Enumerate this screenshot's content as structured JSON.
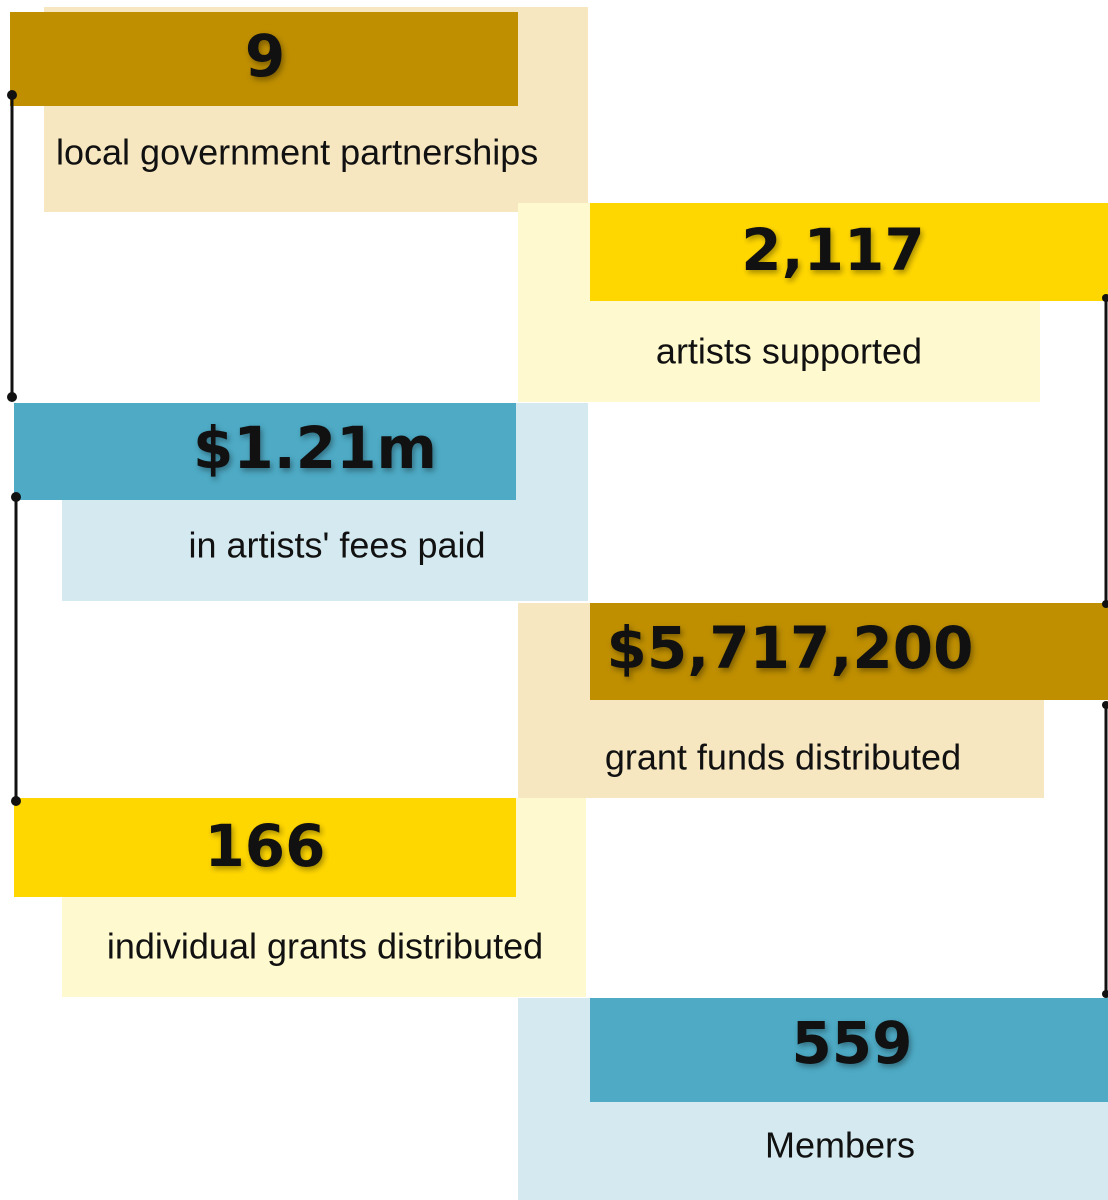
{
  "stats": [
    {
      "value": "9",
      "label": "local government partnerships"
    },
    {
      "value": "2,117",
      "label": "artists supported"
    },
    {
      "value": "$1.21m",
      "label": "in artists' fees paid"
    },
    {
      "value": "$5,717,200",
      "label": "grant funds distributed"
    },
    {
      "value": "166",
      "label": "individual grants distributed"
    },
    {
      "value": "559",
      "label": "Members"
    }
  ]
}
